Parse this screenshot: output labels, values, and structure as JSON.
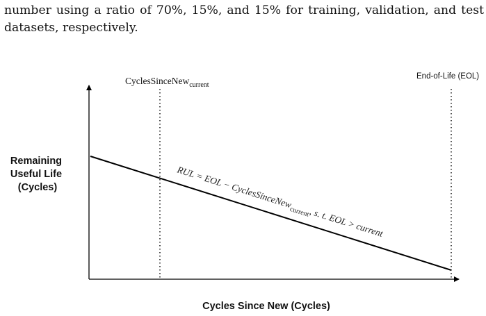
{
  "paper_text": {
    "line1": "number using a ratio of 70%, 15%, and 15% for training, validation, and test",
    "line2": "datasets, respectively."
  },
  "figure": {
    "current_marker_label": {
      "base": "CyclesSinceNew",
      "subscript": "current"
    },
    "eol_marker_label": "End-of-Life (EOL)",
    "ylabel_lines": [
      "Remaining",
      "Useful Life",
      "(Cycles)"
    ],
    "xlabel": "Cycles Since New (Cycles)",
    "equation": {
      "part1": "RUL = EOL − CyclesSinceNew",
      "sub": "current",
      "part2": ",    s. t.    EOL > current"
    }
  }
}
